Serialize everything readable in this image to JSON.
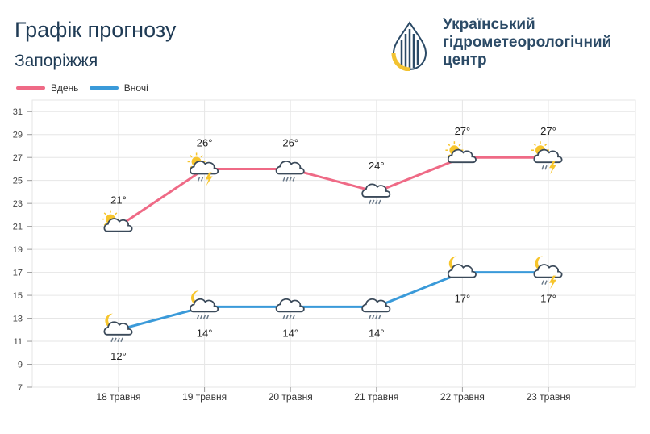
{
  "header": {
    "title": "Графік прогнозу",
    "city": "Запоріжжя",
    "org_line1": "Український",
    "org_line2": "гідрометеорологічний",
    "org_line3": "центр"
  },
  "colors": {
    "day": "#ef6a86",
    "night": "#3a9ad9",
    "grid": "#e6e6e6",
    "text_dark": "#1f3b55"
  },
  "chart_data": {
    "type": "line",
    "categories": [
      "18 травня",
      "19 травня",
      "20 травня",
      "21 травня",
      "22 травня",
      "23 травня"
    ],
    "series": [
      {
        "name": "Вдень",
        "values": [
          21,
          26,
          26,
          24,
          27,
          27
        ],
        "labels": [
          "21°",
          "26°",
          "26°",
          "24°",
          "27°",
          "27°"
        ],
        "icons": [
          "sun-cloud-icon",
          "sun-cloud-thunder-rain-icon",
          "cloud-rain-icon",
          "cloud-rain-icon",
          "sun-cloud-icon",
          "sun-cloud-thunder-rain-icon"
        ]
      },
      {
        "name": "Вночі",
        "values": [
          12,
          14,
          14,
          14,
          17,
          17
        ],
        "labels": [
          "12°",
          "14°",
          "14°",
          "14°",
          "17°",
          "17°"
        ],
        "icons": [
          "moon-cloud-rain-icon",
          "moon-cloud-rain-icon",
          "cloud-rain-icon",
          "cloud-rain-icon",
          "moon-cloud-icon",
          "moon-cloud-thunder-rain-icon"
        ]
      }
    ],
    "y_ticks": [
      7,
      9,
      11,
      13,
      15,
      17,
      19,
      21,
      23,
      25,
      27,
      29,
      31
    ],
    "ylim": [
      7,
      32
    ],
    "grid": true,
    "legend_position": "top-left"
  }
}
